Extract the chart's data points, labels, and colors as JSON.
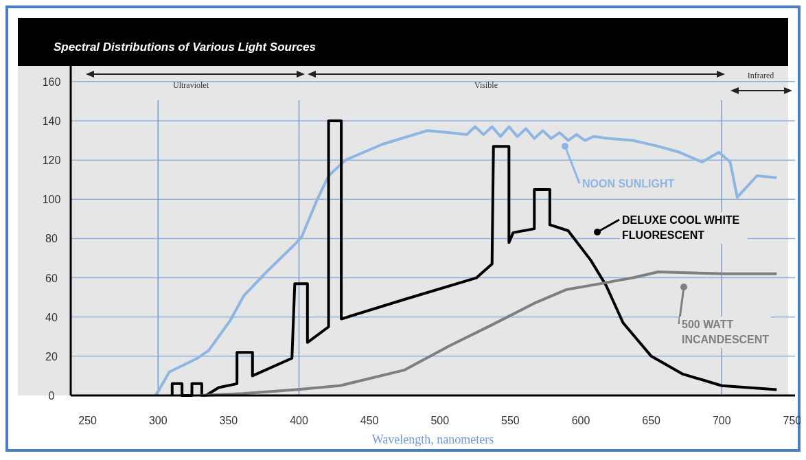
{
  "chart_data": {
    "type": "line",
    "title": "Spectral Distributions of Various Light Sources",
    "xlabel": "Wavelength, nanometers",
    "xlim": [
      238,
      752
    ],
    "xticks": [
      250,
      300,
      350,
      400,
      450,
      500,
      550,
      600,
      650,
      700,
      750
    ],
    "ylim": [
      0,
      168
    ],
    "yticks": [
      0,
      20,
      40,
      60,
      80,
      100,
      120,
      140,
      160
    ],
    "grid": "y",
    "legend": "right",
    "marker": "none",
    "line_style": "solid",
    "ref_lines": [
      {
        "axis": "x",
        "value": 300,
        "color": "#6f9bd6"
      },
      {
        "axis": "x",
        "value": 400,
        "color": "#6f9bd6"
      },
      {
        "axis": "x",
        "value": 700,
        "color": "#6f9bd6"
      }
    ],
    "annotations": [
      "Ultraviolet",
      "Visible",
      "Infrared"
    ],
    "series": [
      {
        "name": "NOON SUNLIGHT",
        "color": "#8db6e3",
        "x": [
          298,
          300,
          308,
          328,
          336,
          351,
          361,
          377,
          397,
          402,
          413,
          421,
          433,
          459,
          491,
          507,
          519,
          525,
          531,
          537,
          543,
          549,
          555,
          561,
          567,
          573,
          579,
          585,
          591,
          597,
          603,
          609,
          620,
          637,
          655,
          670,
          686,
          698,
          706,
          711,
          725,
          739
        ],
        "values": [
          0,
          2,
          12,
          19,
          23,
          38,
          51,
          63,
          77,
          81,
          100,
          112,
          120,
          128,
          135,
          134,
          133,
          137,
          133,
          137,
          132,
          137,
          132,
          136,
          131,
          135,
          131,
          134,
          130,
          133,
          130,
          132,
          131,
          130,
          127,
          124,
          119,
          124,
          119,
          101,
          112,
          111
        ]
      },
      {
        "name": "DELUXE COOL WHITE FLUORESCENT",
        "color": "#000000",
        "x": [
          310,
          310,
          317,
          317,
          324,
          324,
          331,
          331,
          334,
          343,
          356,
          356,
          367,
          367,
          395,
          397,
          406,
          406,
          421,
          421,
          430,
          430,
          475,
          526,
          537,
          538,
          549,
          549,
          552,
          567,
          567,
          578,
          578,
          591,
          607,
          618,
          630,
          650,
          672,
          700,
          739
        ],
        "values": [
          0,
          6,
          6,
          0,
          0,
          6,
          6,
          0,
          0,
          4,
          6,
          22,
          22,
          10,
          19,
          57,
          57,
          27,
          35,
          140,
          140,
          39,
          49,
          60,
          67,
          127,
          127,
          78,
          83,
          85,
          105,
          105,
          87,
          84,
          69,
          56,
          37,
          20,
          11,
          5,
          3
        ]
      },
      {
        "name": "500 WATT INCANDESCENT",
        "color": "#7f7f7f",
        "x": [
          330,
          360,
          380,
          398,
          429,
          475,
          506,
          537,
          567,
          590,
          614,
          637,
          655,
          702,
          739
        ],
        "values": [
          0,
          1,
          2,
          3,
          5,
          13,
          25,
          36,
          47,
          54,
          57,
          60,
          63,
          62,
          62
        ]
      }
    ]
  }
}
